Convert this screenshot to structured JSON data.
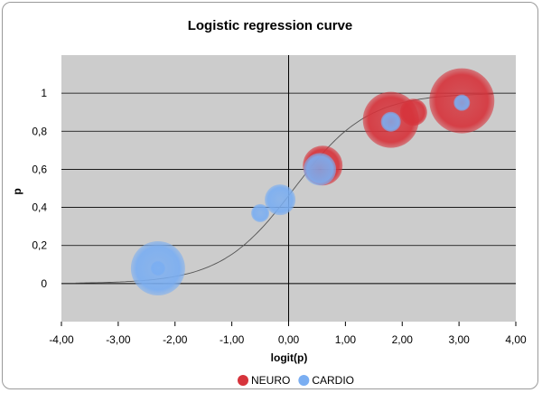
{
  "chart_data": {
    "type": "scatter",
    "title": "Logistic regression curve",
    "xlabel": "logit(p)",
    "ylabel": "p",
    "xlim": [
      -4,
      4
    ],
    "ylim": [
      -0.2,
      1.2
    ],
    "x_ticks": [
      -4,
      -3,
      -2,
      -1,
      0,
      1,
      2,
      3,
      4
    ],
    "x_tick_labels": [
      "-4,00",
      "-3,00",
      "-2,00",
      "-1,00",
      "0,00",
      "1,00",
      "2,00",
      "3,00",
      "4,00"
    ],
    "y_ticks": [
      0,
      0.2,
      0.4,
      0.6,
      0.8,
      1
    ],
    "y_tick_labels": [
      "0",
      "0,2",
      "0,4",
      "0,6",
      "0,8",
      "1"
    ],
    "grid": "horizontal",
    "background": "#cccccc",
    "legend_position": "bottom",
    "curve": {
      "type": "logistic",
      "x_range": [
        -3.75,
        3.6
      ],
      "color": "#555555"
    },
    "series": [
      {
        "name": "NEURO",
        "color": "#d6333b",
        "points": [
          {
            "x": 0.6,
            "y": 0.62,
            "size": 22
          },
          {
            "x": 2.2,
            "y": 0.9,
            "size": 15
          },
          {
            "x": 1.8,
            "y": 0.86,
            "size": 31
          },
          {
            "x": 3.05,
            "y": 0.96,
            "size": 36
          }
        ]
      },
      {
        "name": "CARDIO",
        "color": "#7aaef2",
        "points": [
          {
            "x": -2.3,
            "y": 0.08,
            "size": 30
          },
          {
            "x": -2.3,
            "y": 0.08,
            "size": 8
          },
          {
            "x": -0.5,
            "y": 0.37,
            "size": 10
          },
          {
            "x": -0.15,
            "y": 0.44,
            "size": 17
          },
          {
            "x": 0.55,
            "y": 0.6,
            "size": 18
          },
          {
            "x": 1.8,
            "y": 0.85,
            "size": 11
          },
          {
            "x": 3.05,
            "y": 0.95,
            "size": 9
          }
        ]
      }
    ]
  }
}
